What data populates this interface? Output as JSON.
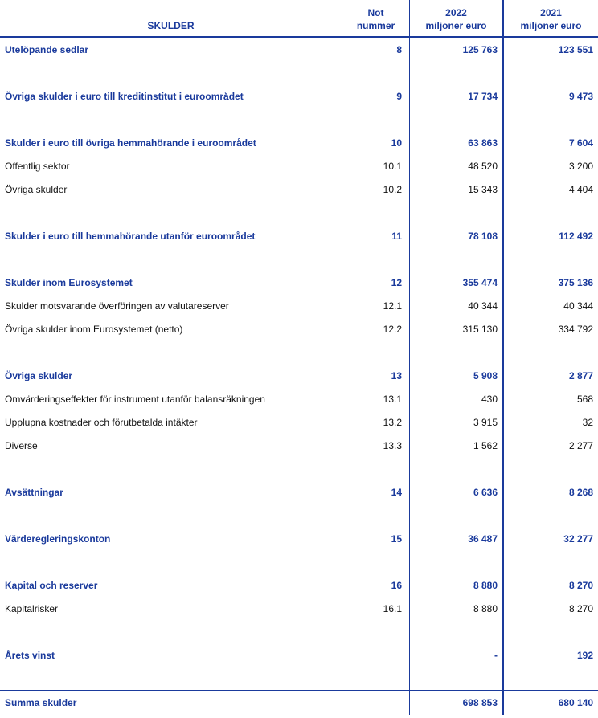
{
  "header": {
    "title": "SKULDER",
    "note_line1": "Not",
    "note_line2": "nummer",
    "col2022_line1": "2022",
    "col2022_line2": "miljoner euro",
    "col2021_line1": "2021",
    "col2021_line2": "miljoner euro"
  },
  "colors": {
    "accent": "#1a3a9c",
    "text": "#111111"
  },
  "groups": [
    {
      "rows": [
        {
          "label": "Utelöpande sedlar",
          "note": "8",
          "v2022": "125 763",
          "v2021": "123 551",
          "main": true
        }
      ]
    },
    {
      "rows": [
        {
          "label": "Övriga skulder i euro till kreditinstitut i euroområdet",
          "note": "9",
          "v2022": "17 734",
          "v2021": "9 473",
          "main": true
        }
      ]
    },
    {
      "rows": [
        {
          "label": "Skulder i euro till övriga hemmahörande i euroområdet",
          "note": "10",
          "v2022": "63 863",
          "v2021": "7 604",
          "main": true
        },
        {
          "label": "Offentlig sektor",
          "note": "10.1",
          "v2022": "48 520",
          "v2021": "3 200",
          "main": false
        },
        {
          "label": "Övriga skulder",
          "note": "10.2",
          "v2022": "15 343",
          "v2021": "4 404",
          "main": false
        }
      ]
    },
    {
      "rows": [
        {
          "label": "Skulder i euro till hemmahörande utanför euroområdet",
          "note": "11",
          "v2022": "78 108",
          "v2021": "112 492",
          "main": true
        }
      ]
    },
    {
      "rows": [
        {
          "label": "Skulder inom Eurosystemet",
          "note": "12",
          "v2022": "355 474",
          "v2021": "375 136",
          "main": true
        },
        {
          "label": "Skulder motsvarande överföringen av valutareserver",
          "note": "12.1",
          "v2022": "40 344",
          "v2021": "40 344",
          "main": false
        },
        {
          "label": "Övriga skulder inom Eurosystemet (netto)",
          "note": "12.2",
          "v2022": "315 130",
          "v2021": "334 792",
          "main": false
        }
      ]
    },
    {
      "rows": [
        {
          "label": "Övriga skulder",
          "note": "13",
          "v2022": "5 908",
          "v2021": "2 877",
          "main": true
        },
        {
          "label": "Omvärderingseffekter för instrument utanför balansräkningen",
          "note": "13.1",
          "v2022": "430",
          "v2021": "568",
          "main": false
        },
        {
          "label": "Upplupna kostnader och förutbetalda intäkter",
          "note": "13.2",
          "v2022": "3 915",
          "v2021": "32",
          "main": false
        },
        {
          "label": "Diverse",
          "note": "13.3",
          "v2022": "1 562",
          "v2021": "2 277",
          "main": false
        }
      ]
    },
    {
      "rows": [
        {
          "label": "Avsättningar",
          "note": "14",
          "v2022": "6 636",
          "v2021": "8 268",
          "main": true
        }
      ]
    },
    {
      "rows": [
        {
          "label": "Värderegleringskonton",
          "note": "15",
          "v2022": "36 487",
          "v2021": "32 277",
          "main": true
        }
      ]
    },
    {
      "rows": [
        {
          "label": "Kapital och reserver",
          "note": "16",
          "v2022": "8 880",
          "v2021": "8 270",
          "main": true
        },
        {
          "label": "Kapitalrisker",
          "note": "16.1",
          "v2022": "8 880",
          "v2021": "8 270",
          "main": false
        }
      ]
    },
    {
      "rows": [
        {
          "label": "Årets vinst",
          "note": "",
          "v2022": "-",
          "v2021": "192",
          "main": true
        }
      ]
    }
  ],
  "total": {
    "label": "Summa skulder",
    "note": "",
    "v2022": "698 853",
    "v2021": "680 140"
  }
}
